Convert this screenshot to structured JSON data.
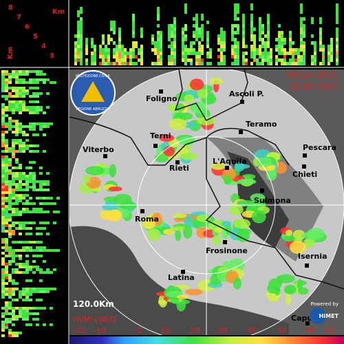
{
  "top_panel": {
    "km_labels": [
      "8",
      "7",
      "6",
      "5",
      "4",
      "3"
    ],
    "unit": "Km"
  },
  "left_panel": {
    "unit": "Km"
  },
  "header": {
    "date": "08 Jun 2015",
    "time": "15:30 CEST"
  },
  "logo": {
    "line1": "PROTEZIONE CIVILE",
    "line2": "REGIONE ABRUZZO"
  },
  "cities": [
    "Foligno",
    "Ascoli P.",
    "Teramo",
    "Terni",
    "Pescara",
    "Viterbo",
    "Rieti",
    "L'Aquila",
    "Chieti",
    "Sulmona",
    "Roma",
    "Frosinone",
    "Isernia",
    "Latina",
    "Capua"
  ],
  "range": "120.0Km",
  "legend": {
    "title": "HVMI [dBZ]",
    "labels": [
      "-20",
      "-10",
      "0",
      "10",
      "20",
      "30",
      "40",
      "50",
      "60",
      "65"
    ]
  },
  "credit": {
    "line1": "Powered by",
    "line2": "HIMET"
  }
}
